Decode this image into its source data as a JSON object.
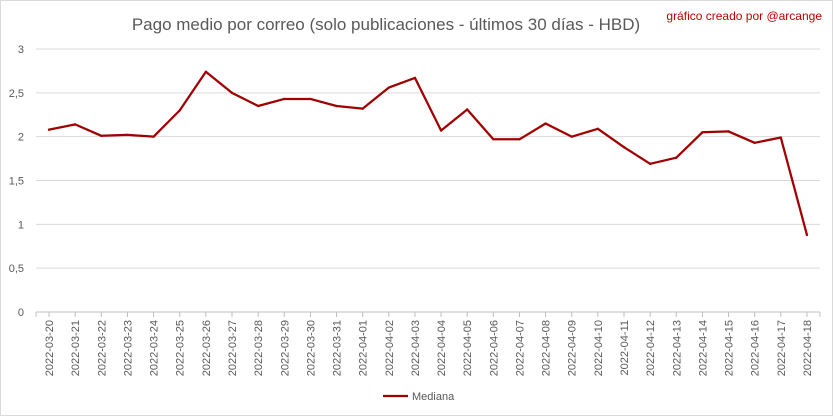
{
  "chart_data": {
    "type": "line",
    "title": "Pago medio por correo (solo publicaciones - últimos 30 días - HBD)",
    "credit": "gráfico creado por @arcange",
    "xlabel": "",
    "ylabel": "",
    "ylim": [
      0,
      3
    ],
    "yticks": [
      "0",
      "0,5",
      "1",
      "1,5",
      "2",
      "2,5",
      "3"
    ],
    "grid": true,
    "legend_position": "bottom",
    "x": [
      "2022-03-20",
      "2022-03-21",
      "2022-03-22",
      "2022-03-23",
      "2022-03-24",
      "2022-03-25",
      "2022-03-26",
      "2022-03-27",
      "2022-03-28",
      "2022-03-29",
      "2022-03-30",
      "2022-03-31",
      "2022-04-01",
      "2022-04-02",
      "2022-04-03",
      "2022-04-04",
      "2022-04-05",
      "2022-04-06",
      "2022-04-07",
      "2022-04-08",
      "2022-04-09",
      "2022-04-10",
      "2022-04-11",
      "2022-04-12",
      "2022-04-13",
      "2022-04-14",
      "2022-04-15",
      "2022-04-16",
      "2022-04-17",
      "2022-04-18"
    ],
    "series": [
      {
        "name": "Mediana",
        "color": "#a00000",
        "values": [
          2.08,
          2.14,
          2.01,
          2.02,
          2.0,
          2.3,
          2.74,
          2.5,
          2.35,
          2.43,
          2.43,
          2.35,
          2.32,
          2.56,
          2.67,
          2.07,
          2.31,
          1.97,
          1.97,
          2.15,
          2.0,
          2.09,
          1.88,
          1.69,
          1.76,
          2.05,
          2.06,
          1.93,
          1.99,
          0.88
        ]
      }
    ]
  }
}
